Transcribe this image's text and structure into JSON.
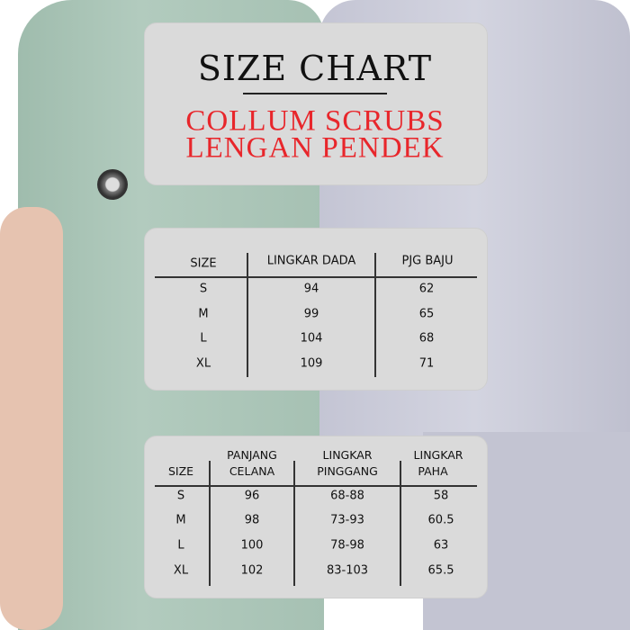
{
  "title": {
    "heading": "SIZE CHART",
    "subtitle_line1": "COLLUM SCRUBS",
    "subtitle_line2": "LENGAN PENDEK"
  },
  "colors": {
    "accent_red": "#e8262b",
    "panel": "#dadada",
    "scrub_left": "#a8c3b5",
    "scrub_right": "#c8c9d7"
  },
  "top_table": {
    "headers": [
      "SIZE",
      "LINGKAR DADA",
      "PJG BAJU"
    ],
    "rows": [
      [
        "S",
        "94",
        "62"
      ],
      [
        "M",
        "99",
        "65"
      ],
      [
        "L",
        "104",
        "68"
      ],
      [
        "XL",
        "109",
        "71"
      ]
    ]
  },
  "bottom_table": {
    "headers": [
      [
        "SIZE"
      ],
      [
        "PANJANG",
        "CELANA"
      ],
      [
        "LINGKAR",
        "PINGGANG"
      ],
      [
        "LINGKAR",
        "PAHA"
      ]
    ],
    "rows": [
      [
        "S",
        "96",
        "68-88",
        "58"
      ],
      [
        "M",
        "98",
        "73-93",
        "60.5"
      ],
      [
        "L",
        "100",
        "78-98",
        "63"
      ],
      [
        "XL",
        "102",
        "83-103",
        "65.5"
      ]
    ]
  }
}
